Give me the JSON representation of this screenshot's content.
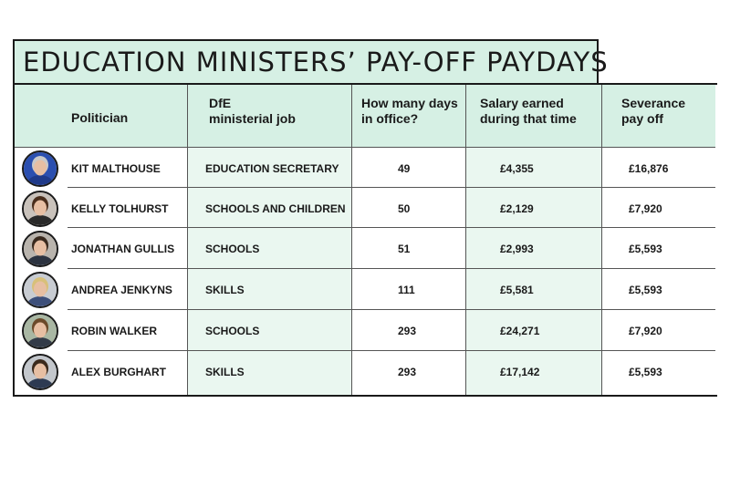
{
  "title": "EDUCATION MINISTERS’ PAY-OFF PAYDAYS",
  "columns": [
    "Politician",
    "DfE\nministerial job",
    "How many days\nin office?",
    "Salary earned\nduring that time",
    "Severance\npay off"
  ],
  "rows": [
    {
      "politician": "KIT MALTHOUSE",
      "job": "EDUCATION SECRETARY",
      "days": "49",
      "salary": "£4,355",
      "severance": "£16,876",
      "avatar_icon": "portrait-photo",
      "shirt_color": "#1f3a8a",
      "hair_color": "#c9c9c9",
      "bg_color": "#2b4fb0"
    },
    {
      "politician": "KELLY TOLHURST",
      "job": "SCHOOLS AND CHILDREN",
      "days": "50",
      "salary": "£2,129",
      "severance": "£7,920",
      "avatar_icon": "portrait-photo",
      "shirt_color": "#2a2a2a",
      "hair_color": "#4a2e1c",
      "bg_color": "#c9c2bb"
    },
    {
      "politician": "JONATHAN GULLIS",
      "job": "SCHOOLS",
      "days": "51",
      "salary": "£2,993",
      "severance": "£5,593",
      "avatar_icon": "portrait-photo",
      "shirt_color": "#2c3340",
      "hair_color": "#3a2a1e",
      "bg_color": "#b9b4ad"
    },
    {
      "politician": "ANDREA JENKYNS",
      "job": "SKILLS",
      "days": "111",
      "salary": "£5,581",
      "severance": "£5,593",
      "avatar_icon": "portrait-photo",
      "shirt_color": "#3d4f7a",
      "hair_color": "#d8c07a",
      "bg_color": "#c8ccd2"
    },
    {
      "politician": "ROBIN WALKER",
      "job": "SCHOOLS",
      "days": "293",
      "salary": "£24,271",
      "severance": "£7,920",
      "avatar_icon": "portrait-photo",
      "shirt_color": "#333b48",
      "hair_color": "#6b4a2a",
      "bg_color": "#a9b7a3"
    },
    {
      "politician": "ALEX BURGHART",
      "job": "SKILLS",
      "days": "293",
      "salary": "£17,142",
      "severance": "£5,593",
      "avatar_icon": "portrait-photo",
      "shirt_color": "#2d3a52",
      "hair_color": "#3b2a1c",
      "bg_color": "#c3c7cc"
    }
  ],
  "chart_data": {
    "type": "table",
    "title": "EDUCATION MINISTERS’ PAY-OFF PAYDAYS",
    "columns": [
      "Politician",
      "DfE ministerial job",
      "How many days in office?",
      "Salary earned during that time",
      "Severance pay off"
    ],
    "rows": [
      [
        "KIT MALTHOUSE",
        "EDUCATION SECRETARY",
        49,
        "£4,355",
        "£16,876"
      ],
      [
        "KELLY TOLHURST",
        "SCHOOLS AND CHILDREN",
        50,
        "£2,129",
        "£7,920"
      ],
      [
        "JONATHAN GULLIS",
        "SCHOOLS",
        51,
        "£2,993",
        "£5,593"
      ],
      [
        "ANDREA JENKYNS",
        "SKILLS",
        111,
        "£5,581",
        "£5,593"
      ],
      [
        "ROBIN WALKER",
        "SCHOOLS",
        293,
        "£24,271",
        "£7,920"
      ],
      [
        "ALEX BURGHART",
        "SKILLS",
        293,
        "£17,142",
        "£5,593"
      ]
    ]
  },
  "colors": {
    "header_bg": "#d6f0e4",
    "alt_col_bg": "#eaf7f0",
    "border": "#1a1a1a"
  }
}
